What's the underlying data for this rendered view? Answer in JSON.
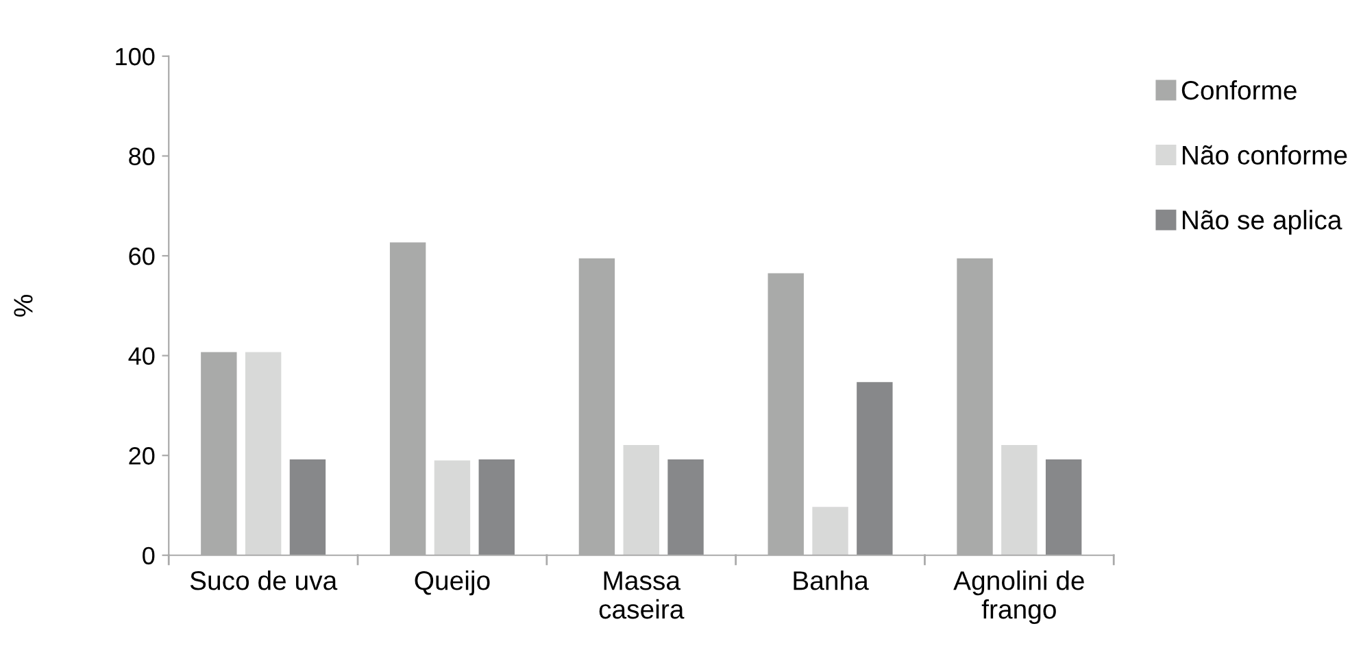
{
  "chart_data": {
    "type": "bar",
    "ylabel": "%",
    "categories": [
      "Suco de uva",
      "Queijo",
      "Massa\ncaseira",
      "Banha",
      "Agnolini de\nfrango"
    ],
    "series": [
      {
        "name": "Conforme",
        "color": "#a9aaa9",
        "values": [
          40.7,
          62.7,
          59.5,
          56.5,
          59.5
        ]
      },
      {
        "name": "Não conforme",
        "color": "#d8d9d8",
        "values": [
          40.7,
          19.0,
          22.1,
          9.7,
          22.1
        ]
      },
      {
        "name": "Não se aplica",
        "color": "#87888a",
        "values": [
          19.2,
          19.2,
          19.2,
          34.7,
          19.2
        ]
      }
    ],
    "ylim": [
      0,
      100
    ],
    "yticks": [
      0,
      20,
      40,
      60,
      80,
      100
    ],
    "grid": false,
    "legend": "top right"
  }
}
